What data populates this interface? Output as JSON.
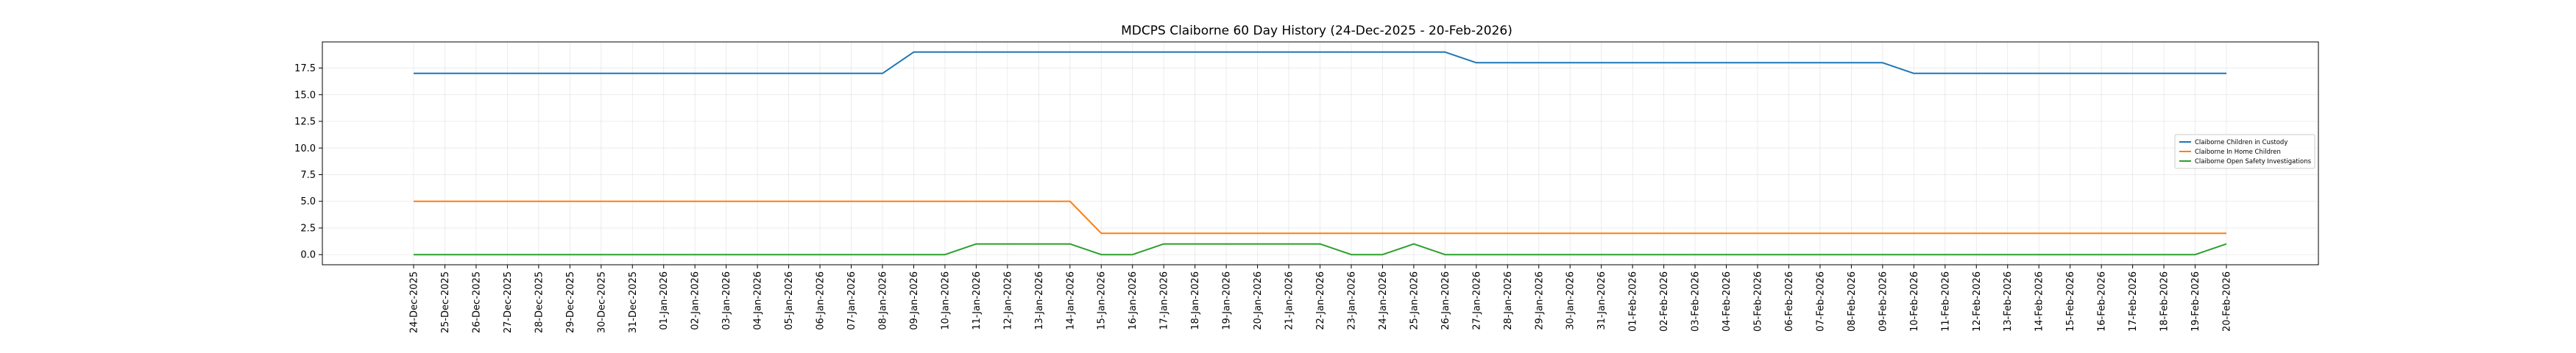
{
  "chart_data": {
    "type": "line",
    "title": "MDCPS Claiborne 60 Day History (24-Dec-2025 - 20-Feb-2026)",
    "xlabel": "",
    "ylabel": "",
    "ylim": [
      -0.95,
      19.95
    ],
    "yticks": [
      0.0,
      2.5,
      5.0,
      7.5,
      10.0,
      12.5,
      15.0,
      17.5
    ],
    "ytick_labels": [
      "0.0",
      "2.5",
      "5.0",
      "7.5",
      "10.0",
      "12.5",
      "15.0",
      "17.5"
    ],
    "grid": true,
    "legend_position": "center-right",
    "x": [
      "24-Dec-2025",
      "25-Dec-2025",
      "26-Dec-2025",
      "27-Dec-2025",
      "28-Dec-2025",
      "29-Dec-2025",
      "30-Dec-2025",
      "31-Dec-2025",
      "01-Jan-2026",
      "02-Jan-2026",
      "03-Jan-2026",
      "04-Jan-2026",
      "05-Jan-2026",
      "06-Jan-2026",
      "07-Jan-2026",
      "08-Jan-2026",
      "09-Jan-2026",
      "10-Jan-2026",
      "11-Jan-2026",
      "12-Jan-2026",
      "13-Jan-2026",
      "14-Jan-2026",
      "15-Jan-2026",
      "16-Jan-2026",
      "17-Jan-2026",
      "18-Jan-2026",
      "19-Jan-2026",
      "20-Jan-2026",
      "21-Jan-2026",
      "22-Jan-2026",
      "23-Jan-2026",
      "24-Jan-2026",
      "25-Jan-2026",
      "26-Jan-2026",
      "27-Jan-2026",
      "28-Jan-2026",
      "29-Jan-2026",
      "30-Jan-2026",
      "31-Jan-2026",
      "01-Feb-2026",
      "02-Feb-2026",
      "03-Feb-2026",
      "04-Feb-2026",
      "05-Feb-2026",
      "06-Feb-2026",
      "07-Feb-2026",
      "08-Feb-2026",
      "09-Feb-2026",
      "10-Feb-2026",
      "11-Feb-2026",
      "12-Feb-2026",
      "13-Feb-2026",
      "14-Feb-2026",
      "15-Feb-2026",
      "16-Feb-2026",
      "17-Feb-2026",
      "18-Feb-2026",
      "19-Feb-2026",
      "20-Feb-2026"
    ],
    "series": [
      {
        "name": "Claiborne Children in Custody",
        "color": "#1f77b4",
        "values": [
          17,
          17,
          17,
          17,
          17,
          17,
          17,
          17,
          17,
          17,
          17,
          17,
          17,
          17,
          17,
          17,
          19,
          19,
          19,
          19,
          19,
          19,
          19,
          19,
          19,
          19,
          19,
          19,
          19,
          19,
          19,
          19,
          19,
          19,
          18,
          18,
          18,
          18,
          18,
          18,
          18,
          18,
          18,
          18,
          18,
          18,
          18,
          18,
          17,
          17,
          17,
          17,
          17,
          17,
          17,
          17,
          17,
          17,
          17
        ]
      },
      {
        "name": "Claiborne In Home Children",
        "color": "#ff7f0e",
        "values": [
          5,
          5,
          5,
          5,
          5,
          5,
          5,
          5,
          5,
          5,
          5,
          5,
          5,
          5,
          5,
          5,
          5,
          5,
          5,
          5,
          5,
          5,
          2,
          2,
          2,
          2,
          2,
          2,
          2,
          2,
          2,
          2,
          2,
          2,
          2,
          2,
          2,
          2,
          2,
          2,
          2,
          2,
          2,
          2,
          2,
          2,
          2,
          2,
          2,
          2,
          2,
          2,
          2,
          2,
          2,
          2,
          2,
          2,
          2
        ]
      },
      {
        "name": "Claiborne Open Safety Investigations",
        "color": "#2ca02c",
        "values": [
          0,
          0,
          0,
          0,
          0,
          0,
          0,
          0,
          0,
          0,
          0,
          0,
          0,
          0,
          0,
          0,
          0,
          0,
          1,
          1,
          1,
          1,
          0,
          0,
          1,
          1,
          1,
          1,
          1,
          1,
          0,
          0,
          1,
          0,
          0,
          0,
          0,
          0,
          0,
          0,
          0,
          0,
          0,
          0,
          0,
          0,
          0,
          0,
          0,
          0,
          0,
          0,
          0,
          0,
          0,
          0,
          0,
          0,
          1
        ]
      }
    ]
  }
}
